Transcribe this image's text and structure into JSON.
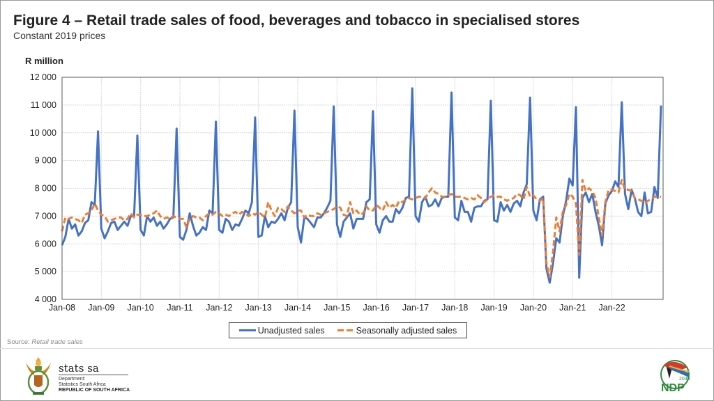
{
  "header": {
    "title": "Figure 4 – Retail trade sales of food, beverages and tobacco in specialised stores",
    "subtitle": "Constant 2019 prices"
  },
  "source": {
    "prefix": "Source: ",
    "text": "Retail trade sales"
  },
  "footer": {
    "org_name": "stats sa",
    "dept_line1": "Department:",
    "dept_line2": "Statistics South Africa",
    "dept_line3": "REPUBLIC OF SOUTH AFRICA",
    "ndp_text": "NDP",
    "ndp_year": "2030"
  },
  "colors": {
    "unadjusted": "#4472c4",
    "seasonal": "#ed7d31",
    "grid": "#d9d9d9"
  },
  "chart_data": {
    "type": "line",
    "title": "Figure 4 – Retail trade sales of food, beverages and tobacco in specialised stores",
    "subtitle": "Constant 2019 prices",
    "ylabel": "R million",
    "xlabel": "",
    "ylim": [
      4000,
      12000
    ],
    "yticks": [
      4000,
      5000,
      6000,
      7000,
      8000,
      9000,
      10000,
      11000,
      12000
    ],
    "ytick_labels": [
      "4 000",
      "5 000",
      "6 000",
      "7 000",
      "8 000",
      "9 000",
      "10 000",
      "11 000",
      "12 000"
    ],
    "x_start": "Jan-08",
    "x_frequency": "monthly",
    "xtick_labels": [
      "Jan-08",
      "Jan-09",
      "Jan-10",
      "Jan-11",
      "Jan-12",
      "Jan-13",
      "Jan-14",
      "Jan-15",
      "Jan-16",
      "Jan-17",
      "Jan-18",
      "Jan-19",
      "Jan-20",
      "Jan-21",
      "Jan-22"
    ],
    "grid": true,
    "legend_position": "bottom",
    "series": [
      {
        "name": "Unadjusted sales",
        "style": "solid",
        "values": [
          5950,
          6250,
          6900,
          6550,
          6700,
          6300,
          6450,
          6750,
          6850,
          7500,
          7400,
          10050,
          6550,
          6200,
          6450,
          6750,
          6800,
          6500,
          6650,
          6800,
          6650,
          7000,
          7000,
          9900,
          6500,
          6300,
          7000,
          6800,
          6950,
          6650,
          6800,
          6550,
          6700,
          6900,
          6950,
          10150,
          6250,
          6150,
          6500,
          7100,
          6650,
          6300,
          6400,
          6600,
          6500,
          7200,
          7100,
          10400,
          6500,
          6400,
          6900,
          6800,
          6500,
          6700,
          6650,
          6900,
          7200,
          7100,
          7500,
          10550,
          6250,
          6300,
          7000,
          6600,
          6800,
          6750,
          6900,
          7100,
          6850,
          7300,
          7500,
          10800,
          6600,
          6050,
          6950,
          6900,
          6750,
          6600,
          6950,
          6950,
          7100,
          7300,
          7550,
          10950,
          6700,
          6250,
          6800,
          6950,
          7100,
          6550,
          6900,
          6900,
          6900,
          7500,
          7600,
          10780,
          6700,
          6400,
          6850,
          7000,
          6800,
          6800,
          7250,
          7100,
          7300,
          7650,
          7700,
          11600,
          7000,
          6800,
          7500,
          7700,
          7350,
          7400,
          7600,
          7350,
          7650,
          7700,
          7700,
          11450,
          6950,
          6850,
          7550,
          7150,
          7150,
          6800,
          7300,
          7350,
          7350,
          7550,
          7600,
          11150,
          6850,
          6800,
          7500,
          7200,
          7400,
          7150,
          7450,
          7550,
          7350,
          7850,
          8150,
          11270,
          7200,
          6850,
          7600,
          7700,
          5100,
          4600,
          5300,
          6200,
          6050,
          7000,
          7550,
          8350,
          8100,
          10930,
          4780,
          7650,
          7850,
          7500,
          7800,
          7150,
          6650,
          5950,
          7450,
          7750,
          7900,
          8250,
          8050,
          11100,
          7800,
          7250,
          7950,
          7650,
          7150,
          7000,
          7850,
          7100,
          7150,
          8050,
          7650,
          10980
        ]
      },
      {
        "name": "Seasonally adjusted sales",
        "style": "dashed",
        "values": [
          6450,
          6950,
          6900,
          6950,
          6900,
          6850,
          6750,
          7050,
          7100,
          7200,
          7450,
          7200,
          7050,
          7000,
          6800,
          6850,
          6900,
          6950,
          6950,
          6850,
          6900,
          7100,
          6950,
          7050,
          7050,
          7000,
          7000,
          7050,
          7100,
          7200,
          7000,
          6900,
          6950,
          6900,
          7000,
          6950,
          6900,
          6900,
          6600,
          6900,
          7000,
          6950,
          6950,
          6850,
          7000,
          7100,
          7050,
          7150,
          7100,
          7000,
          7050,
          7000,
          7100,
          7150,
          7050,
          7150,
          7100,
          7000,
          7100,
          7050,
          7150,
          7050,
          6950,
          7500,
          7200,
          7000,
          7300,
          7250,
          7150,
          7350,
          7200,
          7100,
          7200,
          7200,
          6950,
          7050,
          7000,
          7000,
          7100,
          7050,
          7100,
          7150,
          7200,
          7250,
          7350,
          7300,
          7050,
          7000,
          7500,
          7100,
          7200,
          7050,
          7100,
          7350,
          7200,
          7200,
          7400,
          7300,
          7200,
          7500,
          7300,
          7400,
          7300,
          7550,
          7500,
          7600,
          7650,
          7600,
          7650,
          7700,
          7700,
          7650,
          7850,
          8000,
          7850,
          7800,
          7700,
          7700,
          7750,
          7800,
          7700,
          7700,
          7700,
          7650,
          7600,
          7650,
          7600,
          7750,
          7650,
          7500,
          7600,
          7700,
          7750,
          7700,
          7700,
          7600,
          7550,
          7600,
          7650,
          7800,
          7750,
          7600,
          8050,
          7700,
          7750,
          7600,
          7550,
          7650,
          5300,
          4800,
          5700,
          6950,
          6450,
          7150,
          7400,
          7800,
          7700,
          7450,
          5600,
          8300,
          7900,
          8000,
          7900,
          7650,
          6950,
          6300,
          7500,
          7950,
          7950,
          7900,
          7850,
          8300,
          7950,
          7950,
          7900,
          7650,
          7600,
          7550,
          7450,
          7550,
          7600,
          7700,
          7700,
          7700
        ]
      }
    ]
  }
}
